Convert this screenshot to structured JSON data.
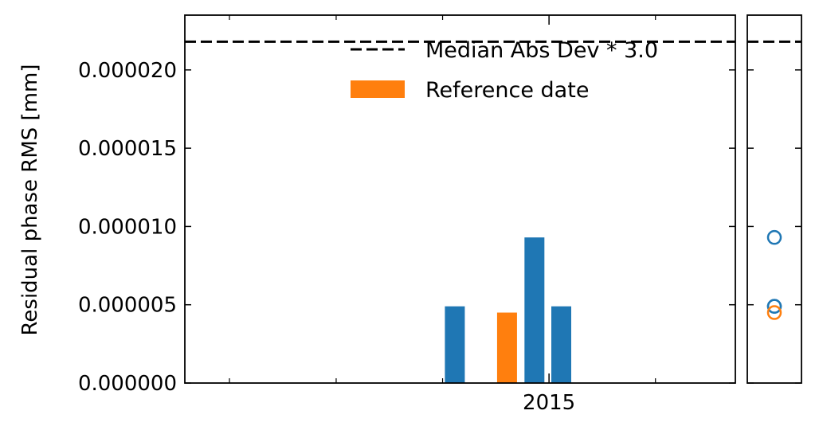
{
  "chart_data": {
    "type": "bar",
    "ylabel": "Residual phase RMS [mm]",
    "ylim": [
      0,
      2.35e-05
    ],
    "yticks": [
      0,
      5e-06,
      1e-05,
      1.5e-05,
      2e-05
    ],
    "ytick_labels": [
      "0.000000",
      "0.000005",
      "0.000010",
      "0.000015",
      "0.000020"
    ],
    "x_axis": {
      "type": "date",
      "range": [
        "2011-08-01",
        "2016-10-01"
      ],
      "labeled_ticks": [
        {
          "date": "2015-01-01",
          "label": "2015"
        }
      ],
      "minor_ticks": [
        "2012-01-01",
        "2013-01-01",
        "2014-01-01",
        "2016-01-01"
      ]
    },
    "bars": [
      {
        "date": "2014-02-12",
        "value": 4.9e-06,
        "reference": false
      },
      {
        "date": "2014-08-10",
        "value": 4.5e-06,
        "reference": true
      },
      {
        "date": "2014-11-12",
        "value": 9.3e-06,
        "reference": false
      },
      {
        "date": "2015-02-12",
        "value": 4.9e-06,
        "reference": false
      }
    ],
    "threshold": {
      "value": 2.18e-05,
      "label": "Median Abs Dev * 3.0"
    },
    "legend": {
      "placement": "upper-right",
      "entries": [
        {
          "label": "Median Abs Dev * 3.0",
          "style": "dashed-line"
        },
        {
          "label": "Reference date",
          "style": "patch"
        }
      ]
    },
    "side_panel": {
      "type": "scatter",
      "points": [
        {
          "value": 9.3e-06,
          "reference": false
        },
        {
          "value": 4.9e-06,
          "reference": false
        },
        {
          "value": 4.9e-06,
          "reference": false
        },
        {
          "value": 4.5e-06,
          "reference": true
        }
      ]
    },
    "colors": {
      "bar": "#1f77b4",
      "reference": "#ff7f0e",
      "threshold": "#000000"
    }
  }
}
